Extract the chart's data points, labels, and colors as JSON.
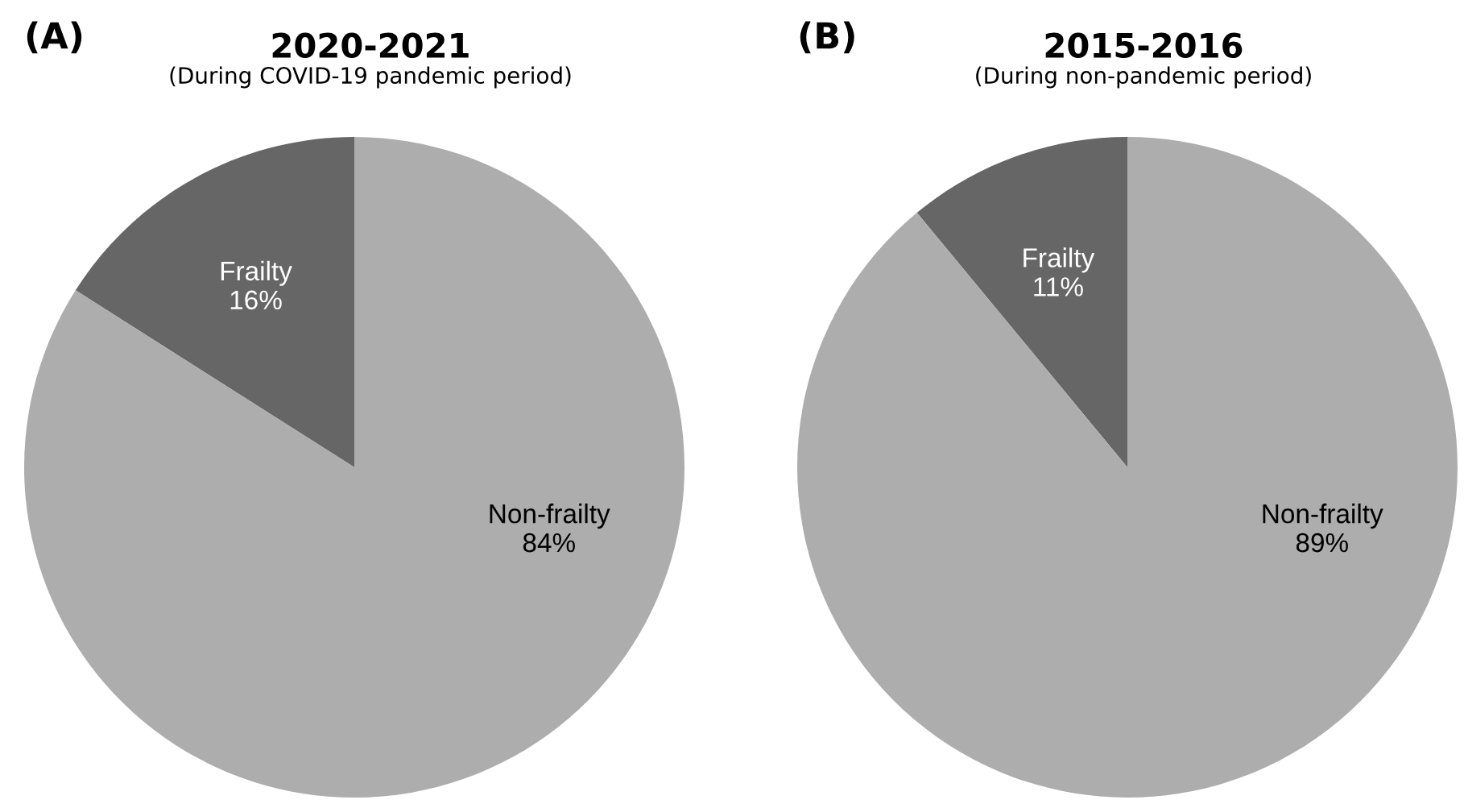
{
  "chart_data": [
    {
      "type": "pie",
      "title": "2020-2021",
      "subtitle": "(During COVID-19 pandemic period)",
      "annotations": [
        "(A)"
      ],
      "categories": [
        "Frailty",
        "Non-frailty"
      ],
      "values": [
        16,
        84
      ],
      "colors": [
        "#666666",
        "#adadad"
      ],
      "value_labels": [
        "16%",
        "84%"
      ]
    },
    {
      "type": "pie",
      "title": "2015-2016",
      "subtitle": "(During non-pandemic period)",
      "annotations": [
        "(B)"
      ],
      "categories": [
        "Frailty",
        "Non-frailty"
      ],
      "values": [
        11,
        89
      ],
      "colors": [
        "#666666",
        "#adadad"
      ],
      "value_labels": [
        "11%",
        "89%"
      ]
    }
  ]
}
